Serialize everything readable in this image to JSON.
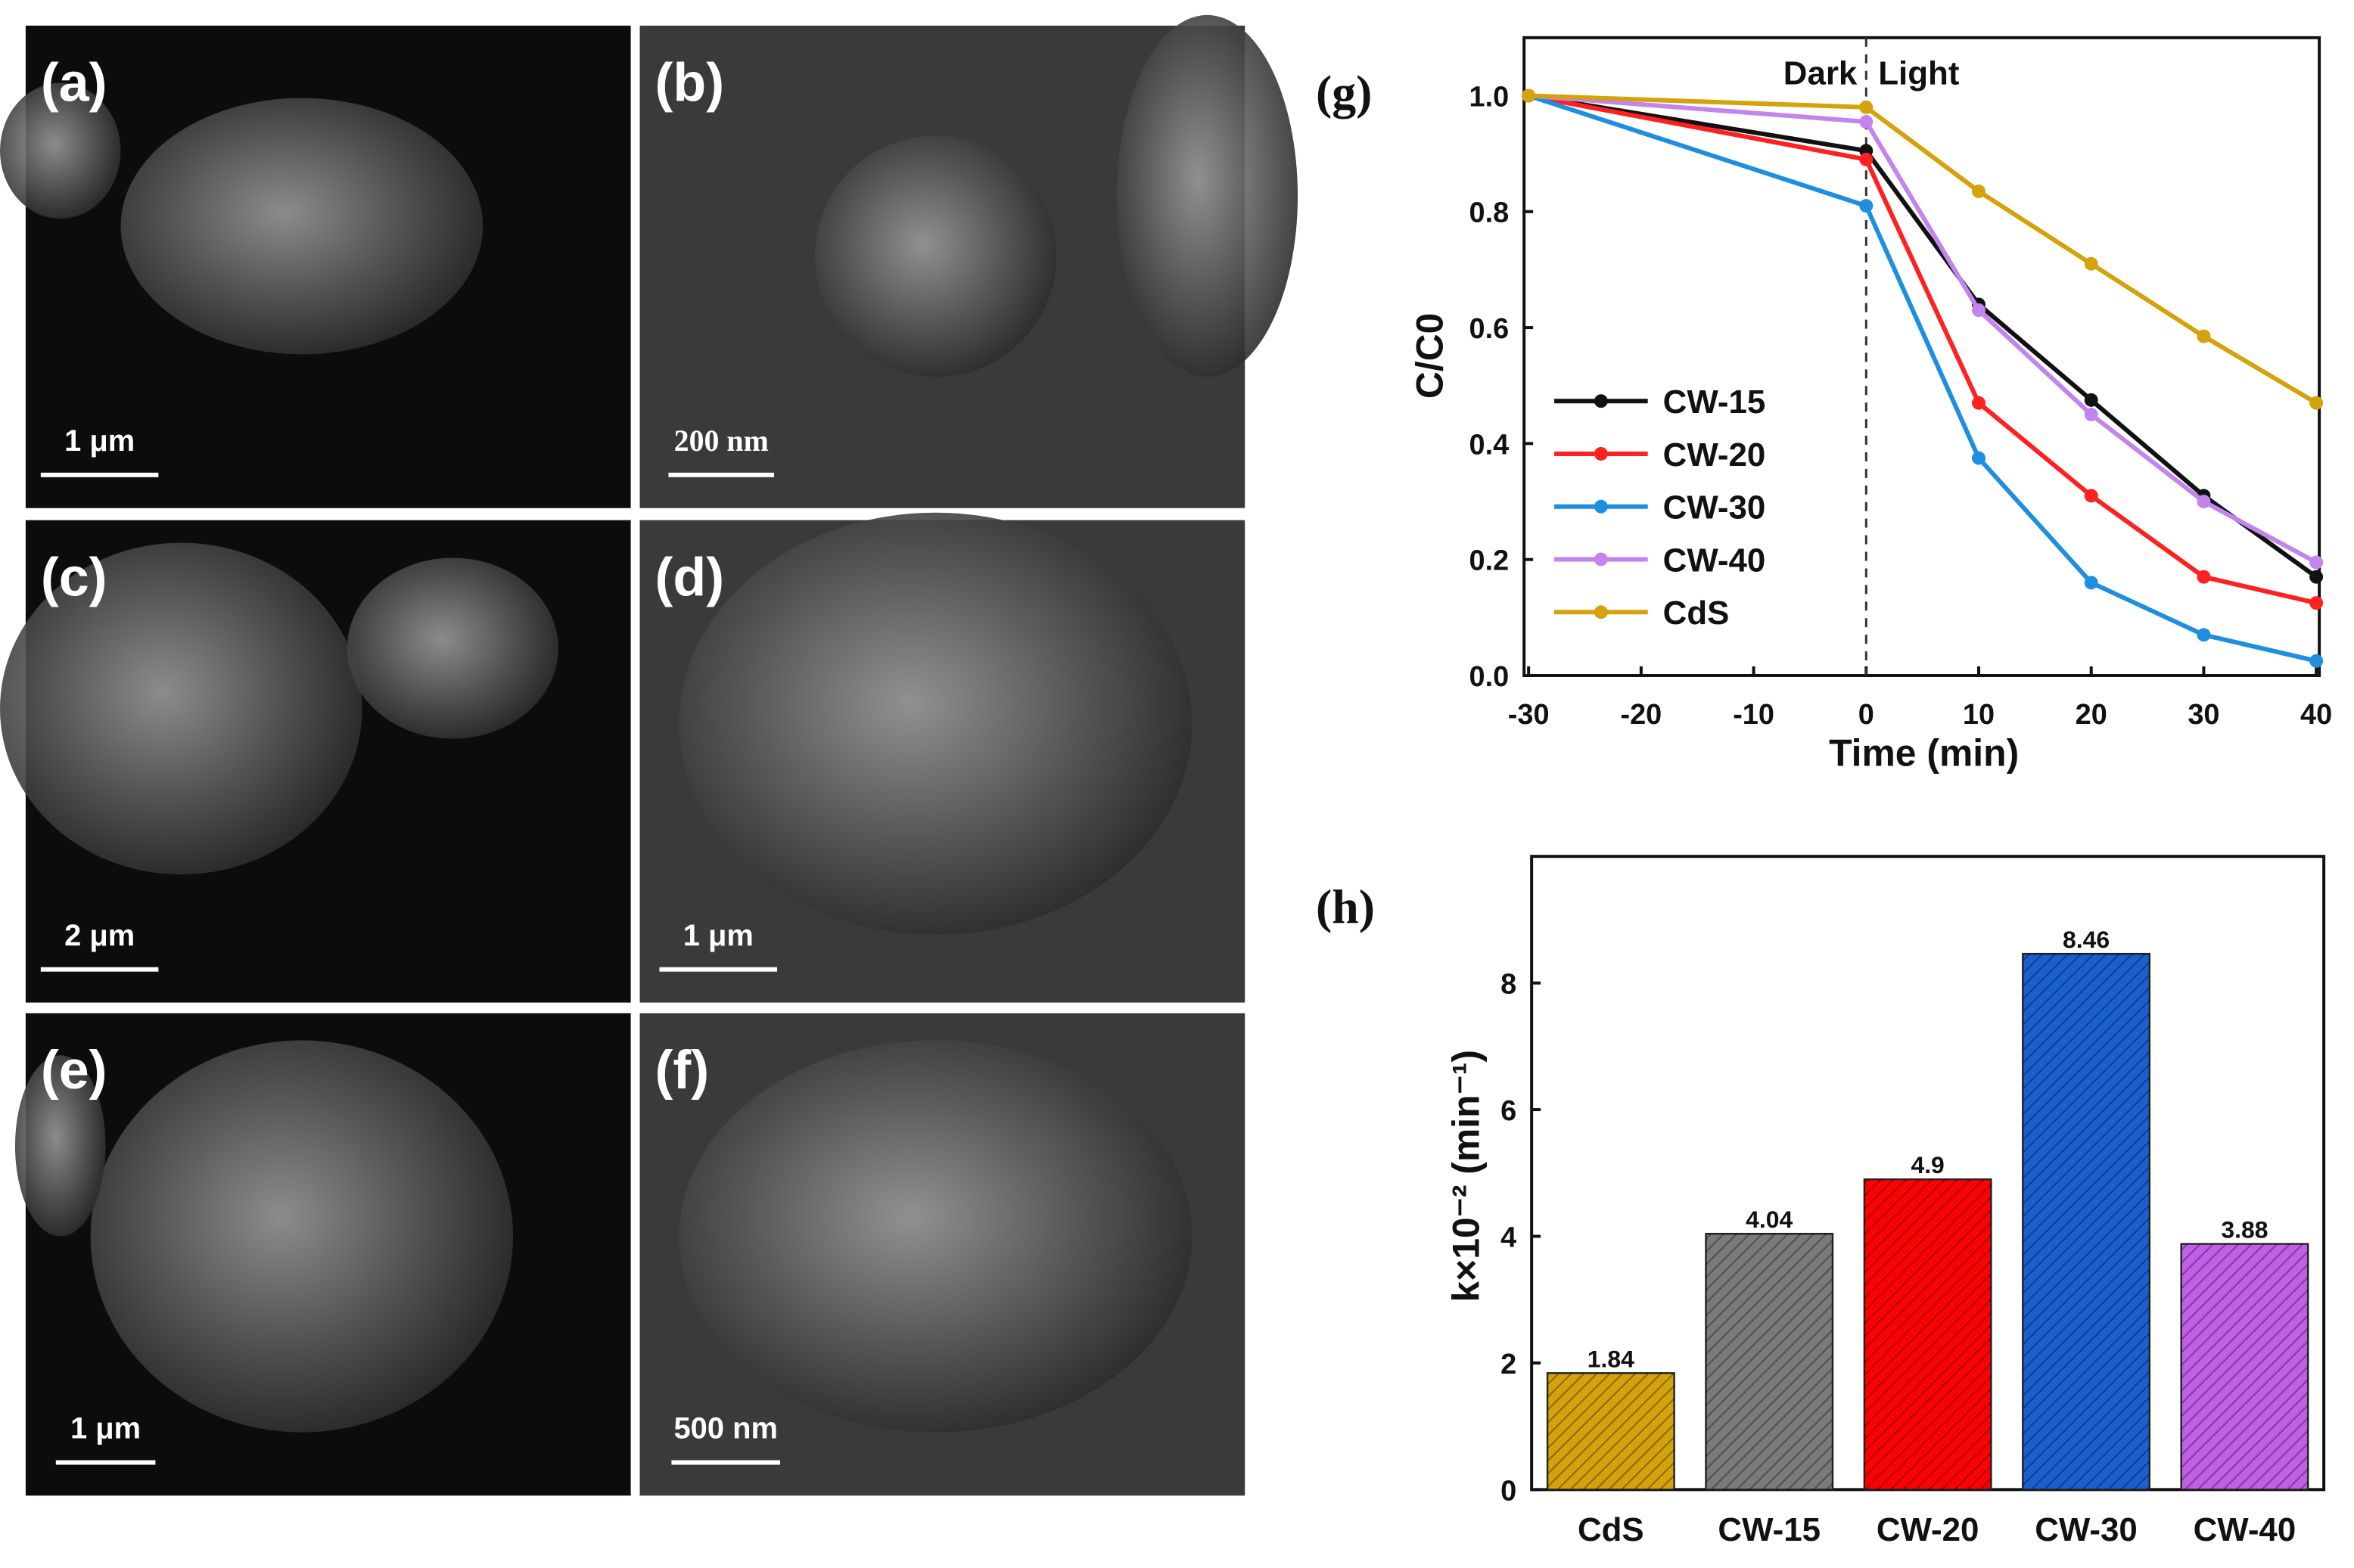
{
  "sem_panels": [
    {
      "label": "(a)",
      "scale_bar": "1 μm"
    },
    {
      "label": "(b)",
      "scale_bar": "200 nm"
    },
    {
      "label": "(c)",
      "scale_bar": "2 μm"
    },
    {
      "label": "(d)",
      "scale_bar": "1 μm"
    },
    {
      "label": "(e)",
      "scale_bar": "1 μm"
    },
    {
      "label": "(f)",
      "scale_bar": "500 nm"
    }
  ],
  "chart_data": [
    {
      "type": "line",
      "panel_label": "(g)",
      "x_label": "Time (min)",
      "y_label": "C/C0",
      "annotations": [
        "Dark",
        "Light"
      ],
      "divider_x": 0,
      "x": [
        -30,
        0,
        10,
        20,
        30,
        40
      ],
      "series": [
        {
          "name": "CW-15",
          "color": "#111111",
          "values": [
            1.0,
            0.905,
            0.64,
            0.475,
            0.31,
            0.17
          ]
        },
        {
          "name": "CW-20",
          "color": "#ff2020",
          "values": [
            1.0,
            0.89,
            0.47,
            0.31,
            0.17,
            0.125
          ]
        },
        {
          "name": "CW-30",
          "color": "#1e8ee0",
          "values": [
            1.0,
            0.81,
            0.375,
            0.16,
            0.07,
            0.025
          ]
        },
        {
          "name": "CW-40",
          "color": "#c384ee",
          "values": [
            1.0,
            0.955,
            0.63,
            0.45,
            0.3,
            0.195
          ]
        },
        {
          "name": "CdS",
          "color": "#d4a20a",
          "values": [
            1.0,
            0.98,
            0.835,
            0.71,
            0.585,
            0.47
          ]
        }
      ],
      "xlim": [
        -30,
        40
      ],
      "xticks": [
        -30,
        -20,
        -10,
        0,
        10,
        20,
        30,
        40
      ],
      "ylim": [
        0,
        1.1
      ],
      "yticks": [
        {
          "value": 0,
          "label": "0.0"
        },
        0.2,
        0.4,
        0.6,
        0.8,
        {
          "value": 1,
          "label": "1.0"
        }
      ],
      "legend": "left"
    },
    {
      "type": "bar",
      "panel_label": "(h)",
      "y_label": "k×10⁻² (min⁻¹)",
      "categories": [
        "CdS",
        "CW-15",
        "CW-20",
        "CW-30",
        "CW-40"
      ],
      "values": [
        1.84,
        4.04,
        4.9,
        8.46,
        3.88
      ],
      "colors": [
        "#d4a20a",
        "#7a7a7a",
        "#ff0000",
        "#1a5fd0",
        "#c060e6"
      ],
      "ylim": [
        0,
        10
      ],
      "yticks": [
        0,
        2,
        4,
        6,
        8
      ]
    }
  ]
}
